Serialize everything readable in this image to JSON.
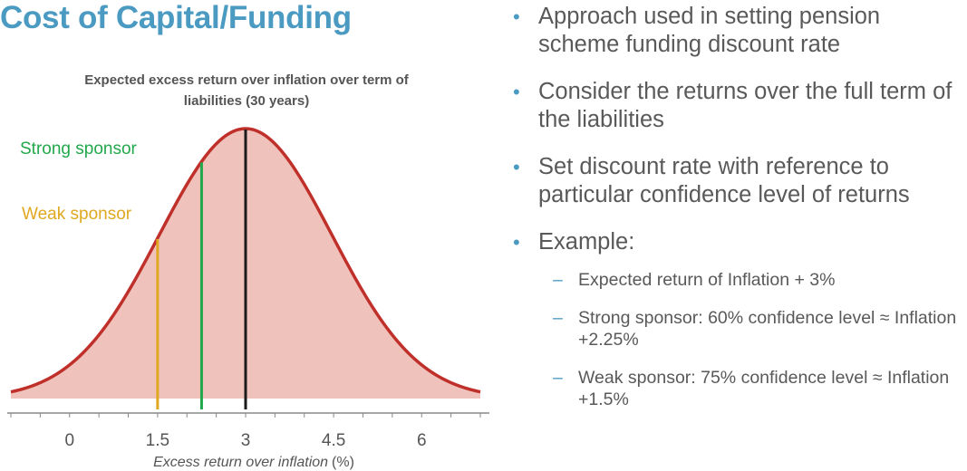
{
  "slide": {
    "title": "Cost of Capital/Funding"
  },
  "bullets": [
    {
      "text": "Approach used in setting pension scheme funding discount rate"
    },
    {
      "text": "Consider the returns over the full term of the liabilities"
    },
    {
      "text": "Set discount rate with reference to particular confidence level of returns"
    },
    {
      "text": "Example:",
      "sub": [
        {
          "text": "Expected return of Inflation + 3%"
        },
        {
          "text": "Strong sponsor: 60% confidence level ≈ Inflation +2.25%"
        },
        {
          "text": "Weak sponsor: 75% confidence level ≈ Inflation +1.5%"
        }
      ]
    }
  ],
  "chart_data": {
    "type": "area",
    "title": "Expected excess return over inflation over term of liabilities (30 years)",
    "xlabel": "Excess return over inflation",
    "xlabel_unit": "(%)",
    "xlim": [
      -1,
      7
    ],
    "x_ticks": [
      0,
      1.5,
      3,
      4.5,
      6
    ],
    "x_tick_labels": [
      "0",
      "1.5",
      "3",
      "4.5",
      "6"
    ],
    "distribution": {
      "mean": 3,
      "sd": 1.47
    },
    "curve_color": "#c0302a",
    "fill_color": "#f0c2bc",
    "markers": [
      {
        "label": "",
        "x": 3,
        "color": "#1a1a1a"
      },
      {
        "label": "Strong sponsor",
        "x": 2.25,
        "color": "#22a84c"
      },
      {
        "label": "Weak sponsor",
        "x": 1.5,
        "color": "#e0a820"
      }
    ]
  }
}
